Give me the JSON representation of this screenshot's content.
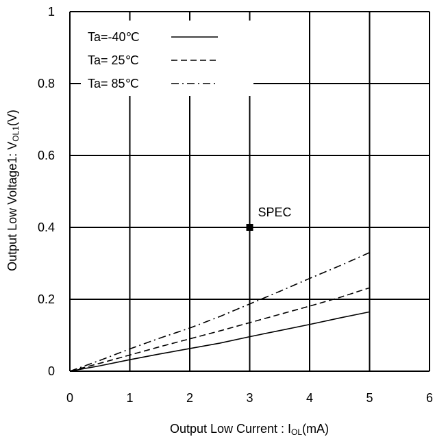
{
  "chart_data": {
    "type": "line",
    "xlabel_main": "Output Low Current : I",
    "xlabel_sub": "OL",
    "xlabel_unit": "(mA)",
    "ylabel_main": "Output Low Voltage1: V",
    "ylabel_sub": "OL1",
    "ylabel_unit": "(V)",
    "xlim": [
      0,
      6
    ],
    "ylim": [
      0,
      1
    ],
    "x_ticks": [
      "0",
      "1",
      "2",
      "3",
      "4",
      "5",
      "6"
    ],
    "y_ticks": [
      "0",
      "0.2",
      "0.4",
      "0.6",
      "0.8",
      "1"
    ],
    "grid": true,
    "legend_position": "top-left",
    "series": [
      {
        "name": "Ta=-40℃",
        "style": "solid",
        "x": [
          0,
          0.5,
          1,
          1.5,
          2,
          2.5,
          3,
          3.5,
          4,
          4.5,
          5
        ],
        "y": [
          0,
          0.015,
          0.032,
          0.048,
          0.063,
          0.078,
          0.096,
          0.113,
          0.13,
          0.148,
          0.165
        ]
      },
      {
        "name": "Ta= 25℃",
        "style": "dashed",
        "x": [
          0,
          0.5,
          1,
          1.5,
          2,
          2.5,
          3,
          3.5,
          4,
          4.5,
          5
        ],
        "y": [
          0,
          0.022,
          0.045,
          0.068,
          0.09,
          0.112,
          0.135,
          0.158,
          0.181,
          0.205,
          0.232
        ]
      },
      {
        "name": "Ta= 85℃",
        "style": "dashdot",
        "x": [
          0,
          0.5,
          1,
          1.5,
          2,
          2.5,
          3,
          3.5,
          4,
          4.5,
          5
        ],
        "y": [
          0,
          0.03,
          0.062,
          0.092,
          0.12,
          0.152,
          0.187,
          0.222,
          0.258,
          0.293,
          0.33
        ]
      }
    ],
    "annotations": [
      {
        "label": "SPEC",
        "x": 3,
        "y": 0.4,
        "marker": "square"
      }
    ],
    "colors": {
      "line": "#000000",
      "grid": "#000000",
      "background": "#ffffff"
    }
  }
}
